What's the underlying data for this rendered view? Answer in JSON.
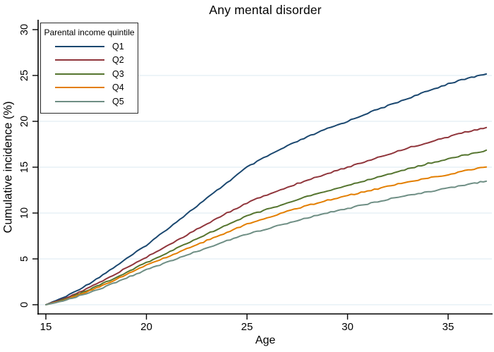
{
  "chart_data": {
    "type": "line",
    "title": "Any mental disorder",
    "xlabel": "Age",
    "ylabel": "Cumulative incidence (%)",
    "xlim": [
      15,
      37
    ],
    "ylim": [
      0,
      30
    ],
    "x_ticks": [
      15,
      20,
      25,
      30,
      35
    ],
    "y_ticks": [
      0,
      5,
      10,
      15,
      20,
      25,
      30
    ],
    "grid": "horizontal",
    "gridline_values": [
      0,
      5,
      10,
      15,
      20,
      25
    ],
    "legend": {
      "title": "Parental income quintile",
      "position": "top-left"
    },
    "x": [
      15,
      16,
      17,
      18,
      19,
      20,
      21,
      22,
      23,
      24,
      25,
      26,
      27,
      28,
      29,
      30,
      31,
      32,
      33,
      34,
      35,
      36,
      36.9
    ],
    "series": [
      {
        "name": "Q1",
        "color": "#1a476f",
        "values": [
          0,
          0.9,
          2.1,
          3.5,
          5.0,
          6.5,
          8.2,
          9.9,
          11.6,
          13.3,
          15.0,
          16.2,
          17.3,
          18.3,
          19.2,
          20.0,
          20.9,
          21.7,
          22.5,
          23.3,
          24.1,
          24.7,
          25.2
        ]
      },
      {
        "name": "Q2",
        "color": "#90353b",
        "values": [
          0,
          0.7,
          1.7,
          2.8,
          4.0,
          5.2,
          6.4,
          7.6,
          8.8,
          10.0,
          11.1,
          12.0,
          12.8,
          13.6,
          14.3,
          15.0,
          15.7,
          16.4,
          17.1,
          17.7,
          18.3,
          18.9,
          19.3
        ]
      },
      {
        "name": "Q3",
        "color": "#55752f",
        "values": [
          0,
          0.6,
          1.5,
          2.5,
          3.5,
          4.6,
          5.6,
          6.7,
          7.7,
          8.7,
          9.7,
          10.4,
          11.1,
          11.8,
          12.4,
          13.0,
          13.6,
          14.2,
          14.8,
          15.4,
          15.9,
          16.4,
          16.8
        ]
      },
      {
        "name": "Q4",
        "color": "#e37e00",
        "values": [
          0,
          0.55,
          1.35,
          2.3,
          3.3,
          4.3,
          5.2,
          6.1,
          7.0,
          7.9,
          8.8,
          9.5,
          10.2,
          10.8,
          11.4,
          11.9,
          12.4,
          12.9,
          13.4,
          13.8,
          14.2,
          14.7,
          15.0
        ]
      },
      {
        "name": "Q5",
        "color": "#6e8e84",
        "values": [
          0,
          0.5,
          1.2,
          2.0,
          2.9,
          3.8,
          4.6,
          5.4,
          6.2,
          7.0,
          7.7,
          8.3,
          8.9,
          9.5,
          10.0,
          10.5,
          11.0,
          11.5,
          11.9,
          12.3,
          12.7,
          13.1,
          13.5
        ]
      }
    ]
  },
  "colors": {
    "background": "#ffffff",
    "axis": "#000000",
    "gridline": "#e2eef4"
  }
}
